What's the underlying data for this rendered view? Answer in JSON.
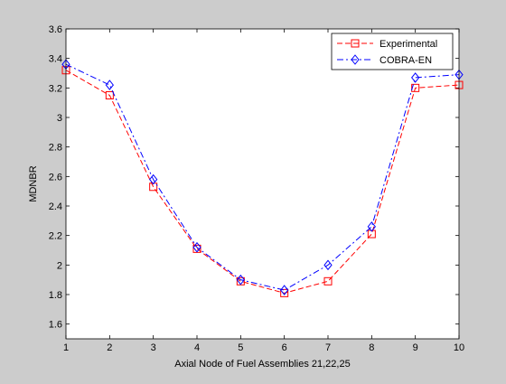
{
  "chart_data": {
    "type": "line",
    "title": "",
    "xlabel": "Axial Node of Fuel Assemblies 21,22,25",
    "ylabel": "MDNBR",
    "xlim": [
      1,
      10
    ],
    "ylim": [
      1.5,
      3.6
    ],
    "x": [
      1,
      2,
      3,
      4,
      5,
      6,
      7,
      8,
      9,
      10
    ],
    "xticks": [
      "1",
      "2",
      "3",
      "4",
      "5",
      "6",
      "7",
      "8",
      "9",
      "10"
    ],
    "yticks": [
      "1.6",
      "1.8",
      "2",
      "2.2",
      "2.4",
      "2.6",
      "2.8",
      "3",
      "3.2",
      "3.4",
      "3.6"
    ],
    "grid": false,
    "legend_position": "top-right",
    "series": [
      {
        "name": "Experimental",
        "values": [
          3.32,
          3.15,
          2.53,
          2.11,
          1.89,
          1.81,
          1.89,
          2.21,
          3.2,
          3.22
        ],
        "color": "#ff0000",
        "line_style": "dashed",
        "marker": "square"
      },
      {
        "name": "COBRA-EN",
        "values": [
          3.36,
          3.22,
          2.58,
          2.12,
          1.9,
          1.83,
          2.0,
          2.26,
          3.27,
          3.29
        ],
        "color": "#0000ff",
        "line_style": "dash-dot",
        "marker": "diamond"
      }
    ]
  }
}
